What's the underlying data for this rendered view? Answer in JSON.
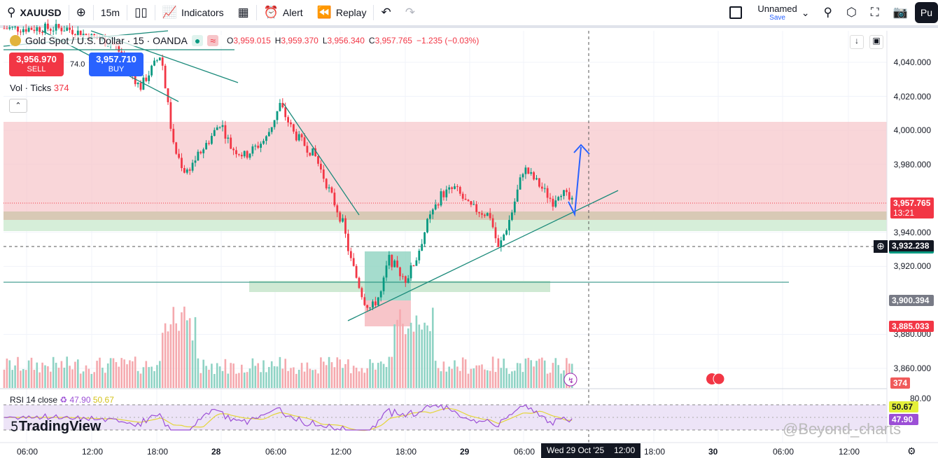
{
  "toolbar": {
    "symbol": "XAUUSD",
    "interval": "15m",
    "indicators": "Indicators",
    "alert": "Alert",
    "replay": "Replay",
    "layout_name": "Unnamed",
    "layout_sub": "Save",
    "publish": "Pu"
  },
  "legend": {
    "title": "Gold Spot / U.S. Dollar · 15 · OANDA",
    "o_label": "O",
    "o": "3,959.015",
    "h_label": "H",
    "h": "3,959.370",
    "l_label": "L",
    "l": "3,956.340",
    "c_label": "C",
    "c": "3,957.765",
    "change": "−1.235 (−0.03%)"
  },
  "trade": {
    "sell_price": "3,956.970",
    "sell": "SELL",
    "spread": "74.0",
    "buy_price": "3,957.710",
    "buy": "BUY"
  },
  "volume": {
    "label": "Vol · Ticks",
    "value": "374"
  },
  "rsi": {
    "label": "RSI 14 close",
    "v1": "47.90",
    "v2": "50.67"
  },
  "price_axis": [
    "4,040.000",
    "4,020.000",
    "4,000.000",
    "3,980.000",
    "3,940.000",
    "3,920.000",
    "3,880.000",
    "3,860.000"
  ],
  "price_axis_values": [
    4040,
    4020,
    4000,
    3980,
    3940,
    3920,
    3880,
    3860
  ],
  "rsi_axis": "80.00",
  "tags": {
    "last": "3,957.765",
    "countdown": "13:21",
    "cross": "3,932.238",
    "gray": "3,900.394",
    "red": "3,885.033",
    "vol": "374",
    "rsi_hi": "50.67",
    "rsi_lo": "47.90"
  },
  "time_axis": [
    "06:00",
    "12:00",
    "18:00",
    "28",
    "06:00",
    "12:00",
    "18:00",
    "29",
    "06:00",
    "18:00",
    "30",
    "06:00",
    "12:00"
  ],
  "time_cursor": "Wed 29 Oct '25",
  "time_cursor2": "12:00",
  "brand": "TradingView",
  "watermark": "@Beyond_charts",
  "colors": {
    "up": "#089981",
    "down": "#f23645",
    "zone_red": "#f7c5c9",
    "zone_green": "#cfe9d3"
  },
  "price_path": [
    [
      0,
      4060
    ],
    [
      95,
      4060
    ],
    [
      165,
      4050
    ],
    [
      200,
      4025
    ],
    [
      230,
      4045
    ],
    [
      248,
      3990
    ],
    [
      265,
      3975
    ],
    [
      300,
      3995
    ],
    [
      315,
      4005
    ],
    [
      330,
      3990
    ],
    [
      350,
      3985
    ],
    [
      380,
      3995
    ],
    [
      400,
      4015
    ],
    [
      420,
      3998
    ],
    [
      450,
      3985
    ],
    [
      470,
      3965
    ],
    [
      490,
      3945
    ],
    [
      500,
      3925
    ],
    [
      520,
      3900
    ],
    [
      530,
      3895
    ],
    [
      545,
      3905
    ],
    [
      555,
      3925
    ],
    [
      580,
      3912
    ],
    [
      595,
      3925
    ],
    [
      610,
      3945
    ],
    [
      630,
      3962
    ],
    [
      650,
      3966
    ],
    [
      670,
      3955
    ],
    [
      700,
      3950
    ],
    [
      712,
      3930
    ],
    [
      730,
      3950
    ],
    [
      748,
      3978
    ],
    [
      770,
      3968
    ],
    [
      790,
      3958
    ],
    [
      800,
      3965
    ],
    [
      818,
      3957
    ]
  ]
}
